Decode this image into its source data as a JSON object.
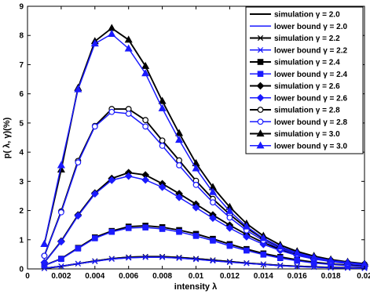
{
  "chart_data": {
    "type": "line",
    "title": "",
    "xlabel": "intensity λ",
    "ylabel": "p( λ, γ)(%)",
    "xlim": [
      0,
      0.02
    ],
    "ylim": [
      0,
      9
    ],
    "x_ticks": [
      "0",
      "0.002",
      "0.004",
      "0.006",
      "0.008",
      "0.01",
      "0.012",
      "0.014",
      "0.016",
      "0.018",
      "0.02"
    ],
    "y_ticks": [
      "0",
      "1",
      "2",
      "3",
      "4",
      "5",
      "6",
      "7",
      "8",
      "9"
    ],
    "legend_position": "top-right",
    "grid": false,
    "colors": {
      "simulation": "#000000",
      "lower_bound": "#1a1aff"
    },
    "x": [
      0.001,
      0.002,
      0.003,
      0.004,
      0.005,
      0.006,
      0.007,
      0.008,
      0.009,
      0.01,
      0.011,
      0.012,
      0.013,
      0.014,
      0.015,
      0.016,
      0.017,
      0.018,
      0.019,
      0.02
    ],
    "series": [
      {
        "name": "simulation γ = 2.0",
        "kind": "simulation",
        "marker": "none",
        "values": [
          0.02,
          0.09,
          0.18,
          0.27,
          0.35,
          0.4,
          0.42,
          0.42,
          0.39,
          0.35,
          0.3,
          0.25,
          0.2,
          0.16,
          0.12,
          0.09,
          0.07,
          0.05,
          0.04,
          0.03
        ]
      },
      {
        "name": "lower bound γ = 2.0",
        "kind": "lower_bound",
        "marker": "none",
        "values": [
          0.02,
          0.09,
          0.18,
          0.26,
          0.34,
          0.38,
          0.4,
          0.4,
          0.37,
          0.33,
          0.28,
          0.23,
          0.19,
          0.15,
          0.11,
          0.08,
          0.06,
          0.04,
          0.03,
          0.02
        ]
      },
      {
        "name": "simulation γ = 2.2",
        "kind": "simulation",
        "marker": "x",
        "values": [
          0.02,
          0.09,
          0.18,
          0.27,
          0.35,
          0.4,
          0.42,
          0.42,
          0.39,
          0.35,
          0.3,
          0.25,
          0.2,
          0.16,
          0.12,
          0.09,
          0.07,
          0.05,
          0.04,
          0.03
        ]
      },
      {
        "name": "lower bound γ = 2.2",
        "kind": "lower_bound",
        "marker": "x",
        "values": [
          0.02,
          0.09,
          0.18,
          0.26,
          0.34,
          0.38,
          0.4,
          0.4,
          0.37,
          0.33,
          0.28,
          0.23,
          0.19,
          0.15,
          0.11,
          0.08,
          0.06,
          0.04,
          0.03,
          0.02
        ]
      },
      {
        "name": "simulation γ = 2.4",
        "kind": "simulation",
        "marker": "square",
        "values": [
          0.12,
          0.35,
          0.72,
          1.08,
          1.3,
          1.45,
          1.48,
          1.43,
          1.33,
          1.2,
          1.03,
          0.85,
          0.68,
          0.53,
          0.41,
          0.31,
          0.23,
          0.17,
          0.13,
          0.1
        ]
      },
      {
        "name": "lower bound γ = 2.4",
        "kind": "lower_bound",
        "marker": "square",
        "values": [
          0.12,
          0.34,
          0.7,
          1.05,
          1.27,
          1.4,
          1.42,
          1.37,
          1.27,
          1.13,
          0.97,
          0.79,
          0.63,
          0.49,
          0.37,
          0.28,
          0.2,
          0.15,
          0.11,
          0.08
        ]
      },
      {
        "name": "simulation γ = 2.6",
        "kind": "simulation",
        "marker": "diamond",
        "values": [
          0.22,
          0.95,
          1.85,
          2.6,
          3.1,
          3.3,
          3.22,
          2.92,
          2.58,
          2.22,
          1.85,
          1.5,
          1.18,
          0.9,
          0.67,
          0.5,
          0.37,
          0.27,
          0.2,
          0.15
        ]
      },
      {
        "name": "lower bound γ = 2.6",
        "kind": "lower_bound",
        "marker": "diamond",
        "values": [
          0.22,
          0.93,
          1.82,
          2.57,
          3.04,
          3.18,
          3.05,
          2.8,
          2.45,
          2.1,
          1.74,
          1.4,
          1.1,
          0.84,
          0.63,
          0.46,
          0.34,
          0.25,
          0.18,
          0.13
        ]
      },
      {
        "name": "simulation γ = 2.8",
        "kind": "simulation",
        "marker": "circle",
        "values": [
          0.45,
          1.97,
          3.7,
          4.9,
          5.48,
          5.48,
          5.1,
          4.4,
          3.72,
          3.02,
          2.4,
          1.87,
          1.4,
          1.03,
          0.75,
          0.55,
          0.4,
          0.29,
          0.21,
          0.16
        ]
      },
      {
        "name": "lower bound γ = 2.8",
        "kind": "lower_bound",
        "marker": "circle",
        "values": [
          0.45,
          1.94,
          3.65,
          4.88,
          5.38,
          5.32,
          4.88,
          4.22,
          3.55,
          2.88,
          2.28,
          1.76,
          1.32,
          0.97,
          0.7,
          0.51,
          0.37,
          0.26,
          0.19,
          0.14
        ]
      },
      {
        "name": "simulation γ = 3.0",
        "kind": "simulation",
        "marker": "triangle",
        "values": [
          0.85,
          3.4,
          6.2,
          7.8,
          8.25,
          7.85,
          6.95,
          5.75,
          4.65,
          3.62,
          2.8,
          2.12,
          1.55,
          1.13,
          0.82,
          0.6,
          0.44,
          0.32,
          0.24,
          0.18
        ]
      },
      {
        "name": "lower bound γ = 3.0",
        "kind": "lower_bound",
        "marker": "triangle",
        "values": [
          0.85,
          3.55,
          6.15,
          7.72,
          8.05,
          7.55,
          6.7,
          5.5,
          4.42,
          3.44,
          2.63,
          1.98,
          1.45,
          1.05,
          0.76,
          0.55,
          0.4,
          0.29,
          0.22,
          0.16
        ]
      }
    ]
  }
}
